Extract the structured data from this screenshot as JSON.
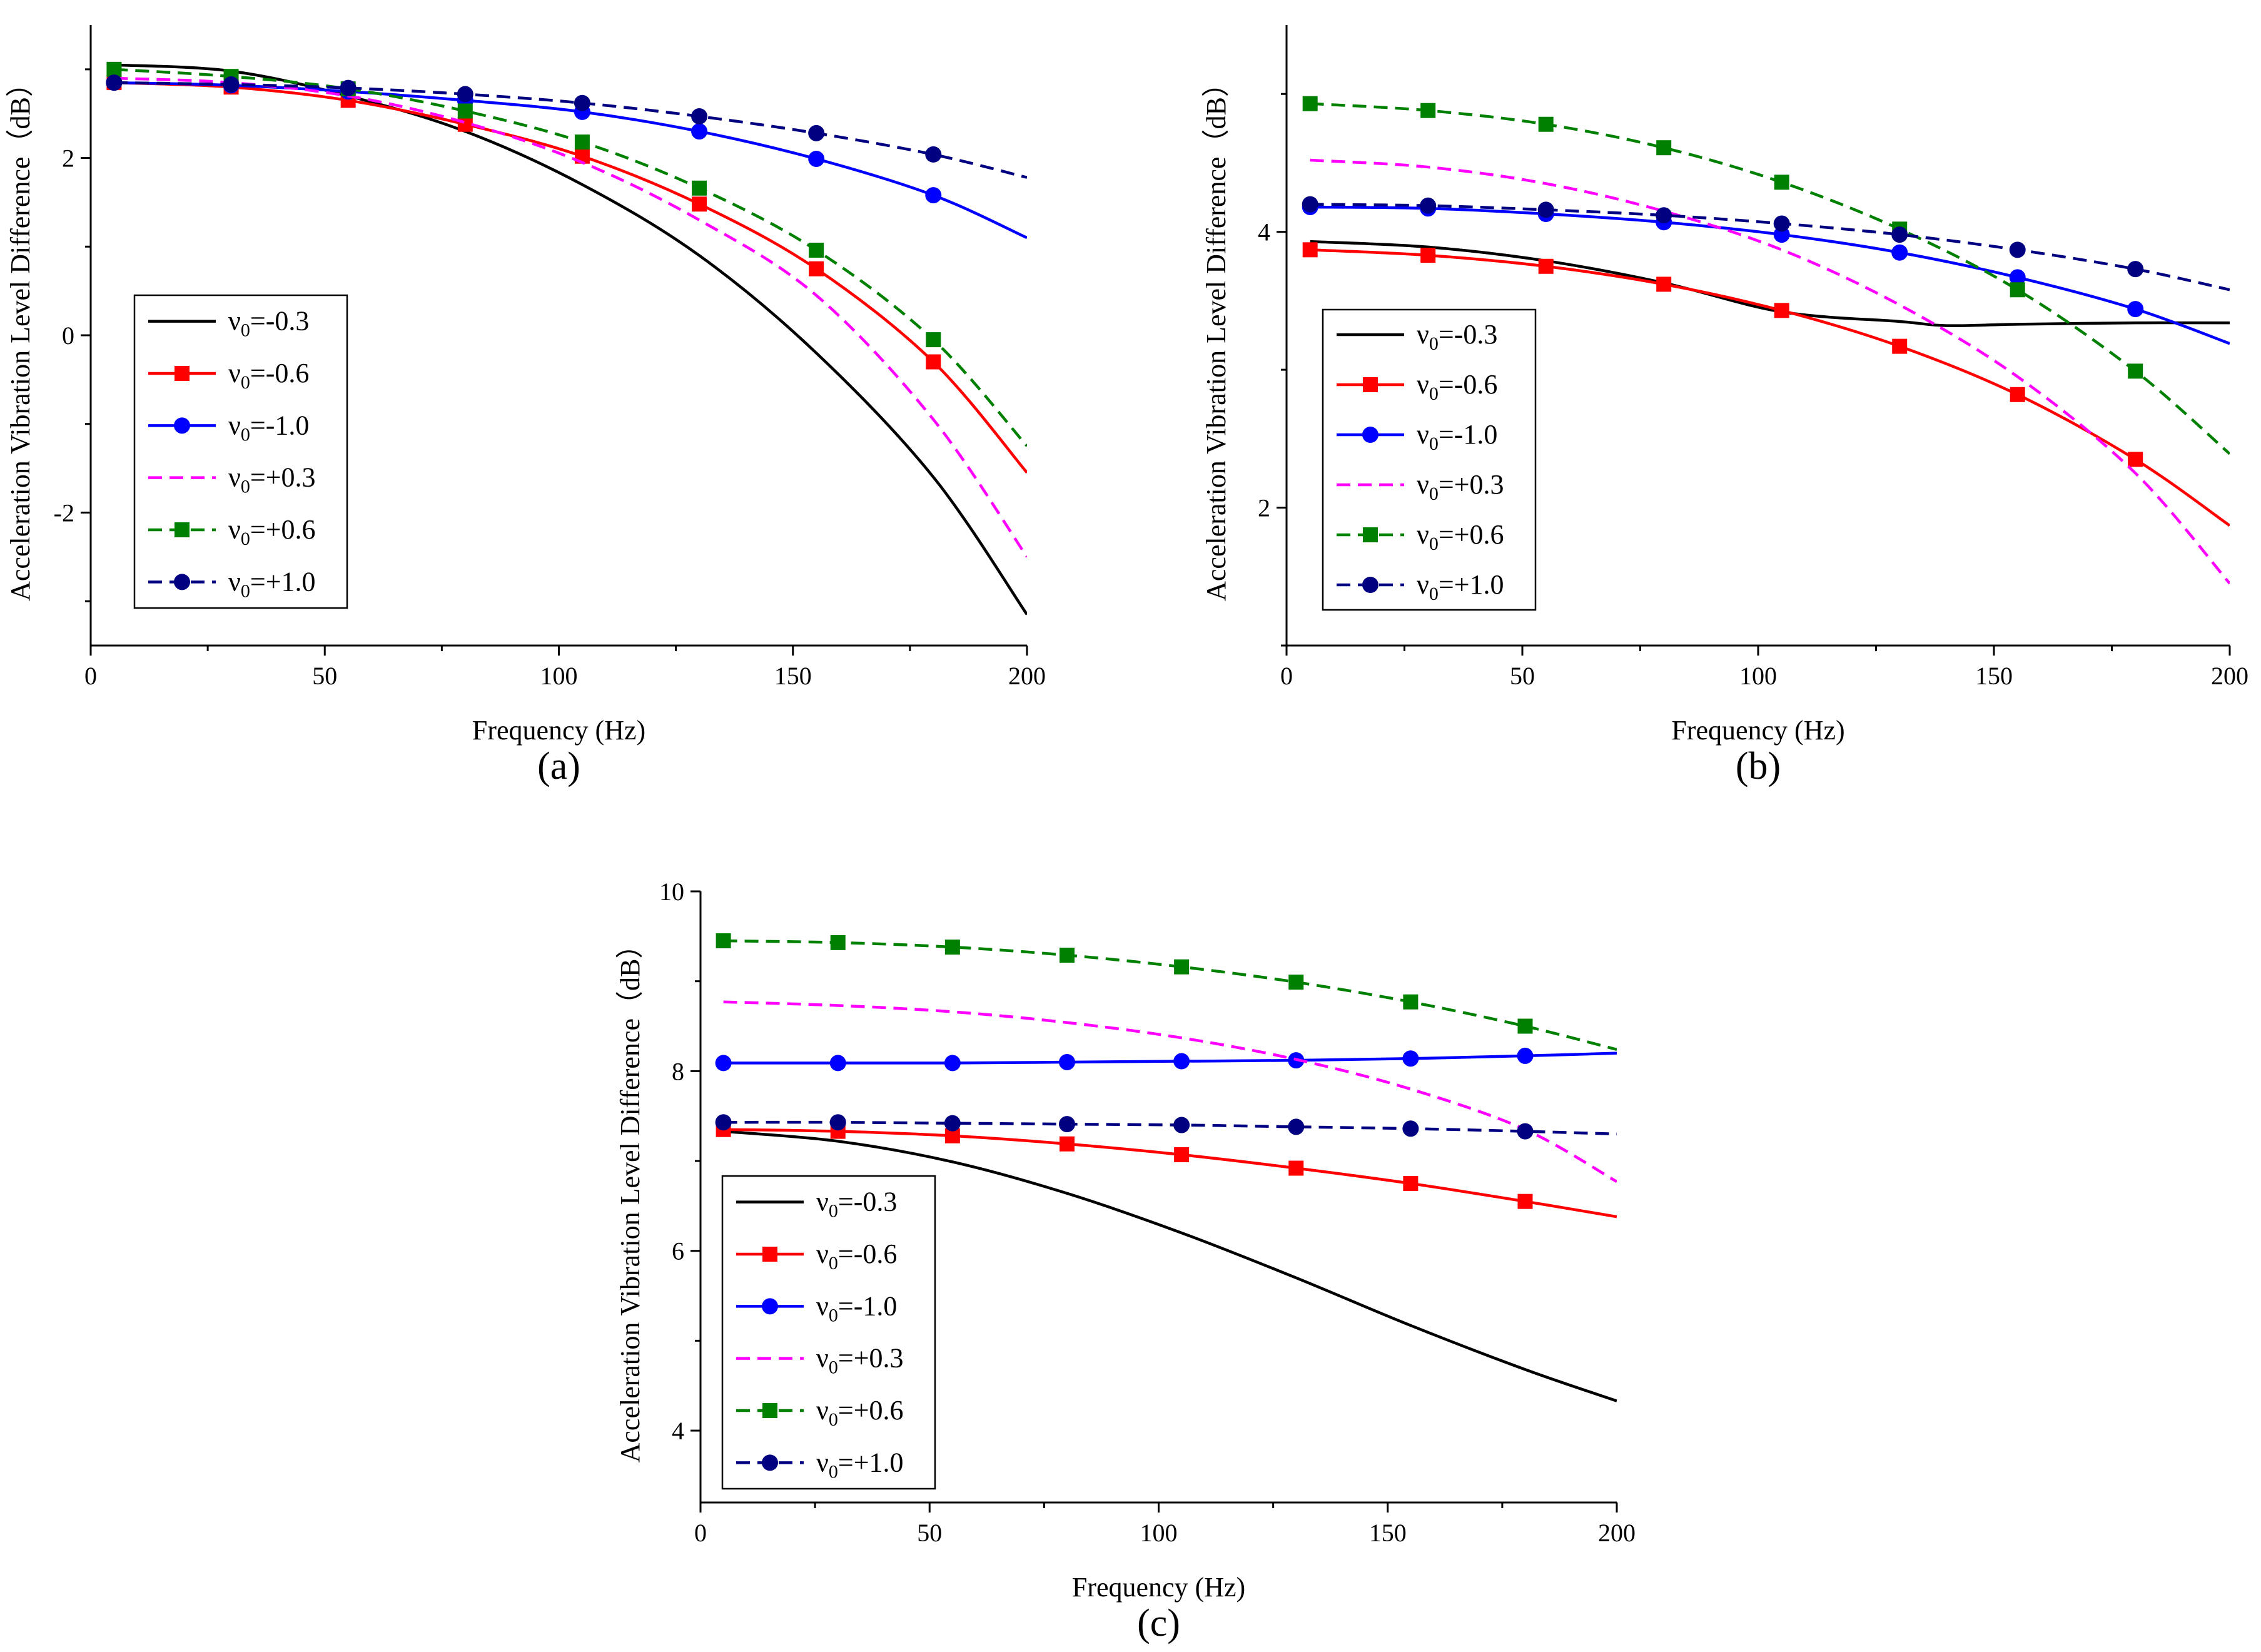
{
  "chart_data": [
    {
      "type": "line",
      "panel_label": "(a)",
      "xlabel": "Frequency (Hz)",
      "ylabel": "Acceleration Vibration Level Difference（dB）",
      "xlim": [
        0,
        200
      ],
      "ylim": [
        -3.5,
        3.5
      ],
      "xticks": [
        0,
        50,
        100,
        150,
        200
      ],
      "yticks": [
        -2,
        0,
        2
      ],
      "legend_position": "lower-left",
      "grid": false,
      "series": [
        {
          "name": "v0=-0.3",
          "legend_symbol": "ν",
          "legend_sub": "0",
          "legend_value": "=-0.3",
          "color": "#000000",
          "dash": "solid",
          "marker": "none",
          "x": [
            5,
            30,
            55,
            80,
            105,
            130,
            155,
            180,
            200
          ],
          "y": [
            3.05,
            2.98,
            2.7,
            2.3,
            1.7,
            0.9,
            -0.2,
            -1.6,
            -3.15
          ]
        },
        {
          "name": "v0=-0.6",
          "legend_symbol": "ν",
          "legend_sub": "0",
          "legend_value": "=-0.6",
          "color": "#ff0000",
          "dash": "solid",
          "marker": "square",
          "x": [
            5,
            30,
            55,
            80,
            105,
            130,
            155,
            180,
            200
          ],
          "y": [
            2.85,
            2.8,
            2.65,
            2.38,
            2.02,
            1.48,
            0.75,
            -0.3,
            -1.55
          ]
        },
        {
          "name": "v0=-1.0",
          "legend_symbol": "ν",
          "legend_sub": "0",
          "legend_value": "=-1.0",
          "color": "#0000ff",
          "dash": "solid",
          "marker": "circle",
          "x": [
            5,
            30,
            55,
            80,
            105,
            130,
            155,
            180,
            200
          ],
          "y": [
            2.85,
            2.82,
            2.75,
            2.65,
            2.52,
            2.3,
            1.99,
            1.58,
            1.1
          ]
        },
        {
          "name": "v0=+0.3",
          "legend_symbol": "ν",
          "legend_sub": "0",
          "legend_value": "=+0.3",
          "color": "#ff00ff",
          "dash": "dash",
          "marker": "none",
          "x": [
            5,
            30,
            55,
            80,
            105,
            130,
            155,
            180,
            200
          ],
          "y": [
            2.9,
            2.85,
            2.7,
            2.4,
            1.95,
            1.3,
            0.45,
            -0.95,
            -2.5
          ]
        },
        {
          "name": "v0=+0.6",
          "legend_symbol": "ν",
          "legend_sub": "0",
          "legend_value": "=+0.6",
          "color": "#008000",
          "dash": "dash",
          "marker": "square",
          "x": [
            5,
            30,
            55,
            80,
            105,
            130,
            155,
            180,
            200
          ],
          "y": [
            3.0,
            2.92,
            2.78,
            2.53,
            2.18,
            1.66,
            0.96,
            -0.05,
            -1.25
          ]
        },
        {
          "name": "v0=+1.0",
          "legend_symbol": "ν",
          "legend_sub": "0",
          "legend_value": "=+1.0",
          "color": "#000080",
          "dash": "dash",
          "marker": "circle",
          "x": [
            5,
            30,
            55,
            80,
            105,
            130,
            155,
            180,
            200
          ],
          "y": [
            2.85,
            2.83,
            2.79,
            2.72,
            2.62,
            2.47,
            2.28,
            2.04,
            1.78
          ]
        }
      ]
    },
    {
      "type": "line",
      "panel_label": "(b)",
      "xlabel": "Frequency (Hz)",
      "ylabel": "Acceleration Vibration Level Difference（dB）",
      "xlim": [
        0,
        200
      ],
      "ylim": [
        1,
        5.5
      ],
      "xticks": [
        0,
        50,
        100,
        150,
        200
      ],
      "yticks": [
        2,
        4
      ],
      "legend_position": "lower-left",
      "grid": false,
      "series": [
        {
          "name": "v0=-0.3",
          "legend_symbol": "ν",
          "legend_sub": "0",
          "legend_value": "=-0.3",
          "color": "#000000",
          "dash": "solid",
          "marker": "none",
          "x": [
            5,
            30,
            55,
            80,
            105,
            130,
            140,
            155,
            180,
            200
          ],
          "y": [
            3.93,
            3.89,
            3.79,
            3.63,
            3.42,
            3.35,
            3.32,
            3.33,
            3.34,
            3.34
          ]
        },
        {
          "name": "v0=-0.6",
          "legend_symbol": "ν",
          "legend_sub": "0",
          "legend_value": "=-0.6",
          "color": "#ff0000",
          "dash": "solid",
          "marker": "square",
          "x": [
            5,
            30,
            55,
            80,
            105,
            130,
            155,
            180,
            200
          ],
          "y": [
            3.87,
            3.83,
            3.75,
            3.62,
            3.43,
            3.17,
            2.82,
            2.35,
            1.87
          ]
        },
        {
          "name": "v0=-1.0",
          "legend_symbol": "ν",
          "legend_sub": "0",
          "legend_value": "=-1.0",
          "color": "#0000ff",
          "dash": "solid",
          "marker": "circle",
          "x": [
            5,
            30,
            55,
            80,
            105,
            130,
            155,
            180,
            200
          ],
          "y": [
            4.18,
            4.17,
            4.13,
            4.07,
            3.98,
            3.85,
            3.67,
            3.44,
            3.19
          ]
        },
        {
          "name": "v0=+0.3",
          "legend_symbol": "ν",
          "legend_sub": "0",
          "legend_value": "=+0.3",
          "color": "#ff00ff",
          "dash": "dash",
          "marker": "none",
          "x": [
            5,
            30,
            55,
            80,
            105,
            130,
            155,
            180,
            200
          ],
          "y": [
            4.52,
            4.47,
            4.35,
            4.15,
            3.87,
            3.47,
            2.95,
            2.25,
            1.45
          ]
        },
        {
          "name": "v0=+0.6",
          "legend_symbol": "ν",
          "legend_sub": "0",
          "legend_value": "=+0.6",
          "color": "#008000",
          "dash": "dash",
          "marker": "square",
          "x": [
            5,
            30,
            55,
            80,
            105,
            130,
            155,
            180,
            200
          ],
          "y": [
            4.93,
            4.88,
            4.78,
            4.61,
            4.36,
            4.02,
            3.58,
            2.99,
            2.39
          ]
        },
        {
          "name": "v0=+1.0",
          "legend_symbol": "ν",
          "legend_sub": "0",
          "legend_value": "=+1.0",
          "color": "#000080",
          "dash": "dash",
          "marker": "circle",
          "x": [
            5,
            30,
            55,
            80,
            105,
            130,
            155,
            180,
            200
          ],
          "y": [
            4.2,
            4.19,
            4.16,
            4.12,
            4.06,
            3.98,
            3.87,
            3.73,
            3.58
          ]
        }
      ]
    },
    {
      "type": "line",
      "panel_label": "(c)",
      "xlabel": "Frequency (Hz)",
      "ylabel": "Acceleration Vibration Level Difference（dB）",
      "xlim": [
        0,
        200
      ],
      "ylim": [
        3.2,
        10
      ],
      "xticks": [
        0,
        50,
        100,
        150,
        200
      ],
      "yticks": [
        4,
        6,
        8,
        10
      ],
      "legend_position": "lower-left",
      "grid": false,
      "series": [
        {
          "name": "v0=-0.3",
          "legend_symbol": "ν",
          "legend_sub": "0",
          "legend_value": "=-0.3",
          "color": "#000000",
          "dash": "solid",
          "marker": "none",
          "x": [
            5,
            30,
            55,
            80,
            105,
            130,
            155,
            180,
            200
          ],
          "y": [
            7.33,
            7.22,
            6.99,
            6.64,
            6.2,
            5.7,
            5.17,
            4.68,
            4.33
          ]
        },
        {
          "name": "v0=-0.6",
          "legend_symbol": "ν",
          "legend_sub": "0",
          "legend_value": "=-0.6",
          "color": "#ff0000",
          "dash": "solid",
          "marker": "square",
          "x": [
            5,
            30,
            55,
            80,
            105,
            130,
            155,
            180,
            200
          ],
          "y": [
            7.35,
            7.33,
            7.28,
            7.19,
            7.07,
            6.92,
            6.75,
            6.55,
            6.38
          ]
        },
        {
          "name": "v0=-1.0",
          "legend_symbol": "ν",
          "legend_sub": "0",
          "legend_value": "=-1.0",
          "color": "#0000ff",
          "dash": "solid",
          "marker": "circle",
          "x": [
            5,
            30,
            55,
            80,
            105,
            130,
            155,
            180,
            200
          ],
          "y": [
            8.09,
            8.09,
            8.09,
            8.1,
            8.11,
            8.12,
            8.14,
            8.17,
            8.2
          ]
        },
        {
          "name": "v0=+0.3",
          "legend_symbol": "ν",
          "legend_sub": "0",
          "legend_value": "=+0.3",
          "color": "#ff00ff",
          "dash": "dash",
          "marker": "none",
          "x": [
            5,
            30,
            55,
            80,
            105,
            130,
            155,
            180,
            200
          ],
          "y": [
            8.77,
            8.73,
            8.66,
            8.54,
            8.37,
            8.13,
            7.8,
            7.35,
            6.77
          ]
        },
        {
          "name": "v0=+0.6",
          "legend_symbol": "ν",
          "legend_sub": "0",
          "legend_value": "=+0.6",
          "color": "#008000",
          "dash": "dash",
          "marker": "square",
          "x": [
            5,
            30,
            55,
            80,
            105,
            130,
            155,
            180,
            200
          ],
          "y": [
            9.45,
            9.43,
            9.38,
            9.29,
            9.16,
            8.99,
            8.77,
            8.5,
            8.24
          ]
        },
        {
          "name": "v0=+1.0",
          "legend_symbol": "ν",
          "legend_sub": "0",
          "legend_value": "=+1.0",
          "color": "#000080",
          "dash": "dash",
          "marker": "circle",
          "x": [
            5,
            30,
            55,
            80,
            105,
            130,
            155,
            180,
            200
          ],
          "y": [
            7.43,
            7.43,
            7.42,
            7.41,
            7.4,
            7.38,
            7.36,
            7.33,
            7.3
          ]
        }
      ]
    }
  ]
}
